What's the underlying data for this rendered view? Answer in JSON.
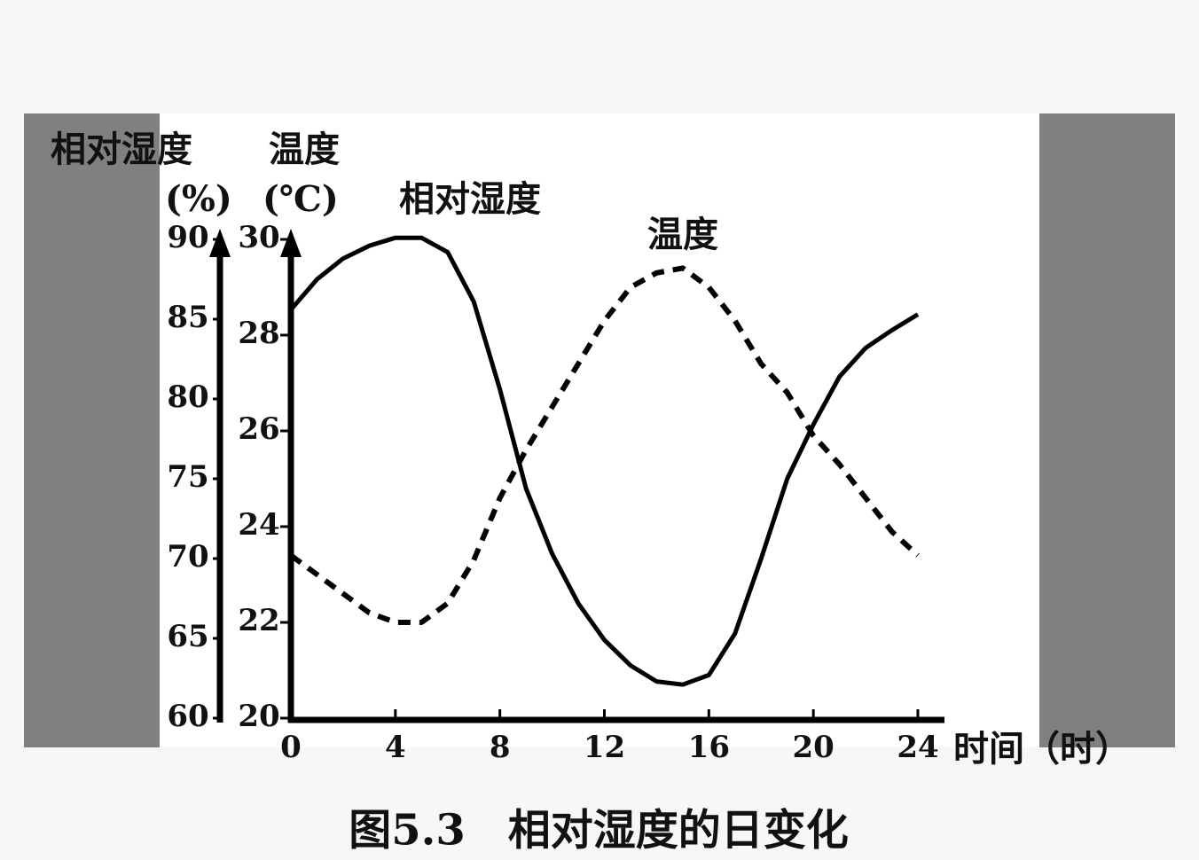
{
  "chart_data": {
    "type": "line",
    "title": "图5.3　相对湿度的日变化",
    "ylabel": "相对湿度",
    "ylabel_unit": "(%)",
    "y2label": "温度",
    "y2label_unit": "(℃)",
    "xlabel": "时间（时）",
    "x": [
      0,
      1,
      2,
      3,
      4,
      5,
      6,
      7,
      8,
      9,
      10,
      11,
      12,
      13,
      14,
      15,
      16,
      17,
      18,
      19,
      20,
      21,
      22,
      23,
      24
    ],
    "xlim": [
      0,
      24
    ],
    "xticks": [
      0,
      4,
      8,
      12,
      16,
      20,
      24
    ],
    "ylim": [
      60,
      90
    ],
    "yticks": [
      60,
      65,
      70,
      75,
      80,
      85,
      90
    ],
    "y2lim": [
      20,
      30
    ],
    "y2ticks": [
      20,
      22,
      24,
      26,
      28,
      30
    ],
    "series": [
      {
        "name": "相对湿度",
        "color": "#000000",
        "line_style": "solid",
        "values": [
          85.6,
          87.5,
          88.8,
          89.6,
          90.1,
          90.1,
          89.2,
          86.1,
          80.6,
          74.4,
          70.3,
          67.2,
          64.9,
          63.3,
          62.3,
          62.1,
          62.7,
          65.3,
          70.0,
          75.0,
          78.4,
          81.4,
          83.2,
          84.3,
          85.3
        ]
      },
      {
        "name": "温度",
        "color": "#000000",
        "line_style": "dashed",
        "axis": "y2",
        "values": [
          23.4,
          23.0,
          22.6,
          22.2,
          22.0,
          22.0,
          22.4,
          23.3,
          24.6,
          25.6,
          26.5,
          27.4,
          28.3,
          29.0,
          29.3,
          29.4,
          29.0,
          28.3,
          27.4,
          26.8,
          25.9,
          25.3,
          24.6,
          23.9,
          23.4
        ]
      }
    ]
  }
}
